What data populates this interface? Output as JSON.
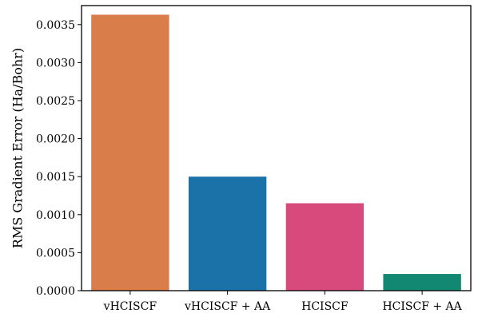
{
  "chart_data": {
    "type": "bar",
    "title": "",
    "xlabel": "",
    "ylabel": "RMS Gradient Error (Ha/Bohr)",
    "categories": [
      "vHCISCF",
      "vHCISCF + AA",
      "HCISCF",
      "HCISCF + AA"
    ],
    "values": [
      0.00363,
      0.0015,
      0.00115,
      0.00022
    ],
    "colors": [
      "#d97d4a",
      "#1b72a8",
      "#d94a7c",
      "#128872"
    ],
    "ylim": [
      0,
      0.00375
    ],
    "yticks": [
      0.0,
      0.0005,
      0.001,
      0.0015,
      0.002,
      0.0025,
      0.003,
      0.0035
    ],
    "ytick_labels": [
      "0.0000",
      "0.0005",
      "0.0010",
      "0.0015",
      "0.0020",
      "0.0025",
      "0.0030",
      "0.0035"
    ],
    "grid": false,
    "legend": null
  }
}
